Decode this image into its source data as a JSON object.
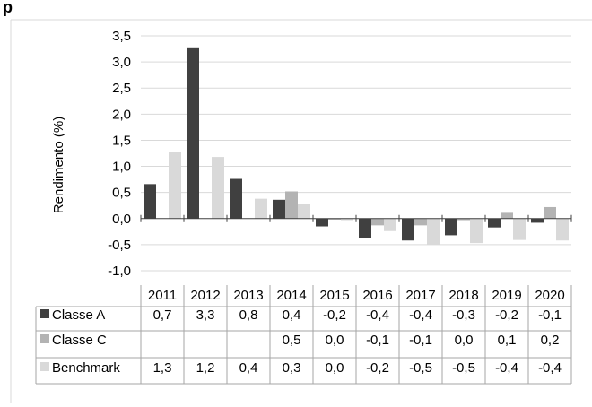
{
  "heading": "p",
  "chart_data": {
    "type": "bar",
    "title": "",
    "xlabel": "",
    "ylabel": "Rendimento (%)",
    "ylim": [
      -1.0,
      3.5
    ],
    "yticks": [
      "3,5",
      "3,0",
      "2,5",
      "2,0",
      "1,5",
      "1,0",
      "0,5",
      "0,0",
      "-0,5",
      "-1,0"
    ],
    "ytick_values": [
      3.5,
      3.0,
      2.5,
      2.0,
      1.5,
      1.0,
      0.5,
      0.0,
      -0.5,
      -1.0
    ],
    "grid": true,
    "legend": "data-table",
    "categories": [
      "2011",
      "2012",
      "2013",
      "2014",
      "2015",
      "2016",
      "2017",
      "2018",
      "2019",
      "2020"
    ],
    "series": [
      {
        "name": "Classe A",
        "color": "#404040",
        "values": [
          0.66,
          3.28,
          0.76,
          0.36,
          -0.15,
          -0.38,
          -0.42,
          -0.32,
          -0.17,
          -0.08
        ],
        "labels": [
          "0,7",
          "3,3",
          "0,8",
          "0,4",
          "-0,2",
          "-0,4",
          "-0,4",
          "-0,3",
          "-0,2",
          "-0,1"
        ]
      },
      {
        "name": "Classe C",
        "color": "#b3b3b3",
        "values": [
          null,
          null,
          null,
          0.52,
          -0.02,
          -0.13,
          -0.13,
          -0.03,
          0.11,
          0.22
        ],
        "labels": [
          "",
          "",
          "",
          "0,5",
          "0,0",
          "-0,1",
          "-0,1",
          "0,0",
          "0,1",
          "0,2"
        ]
      },
      {
        "name": "Benchmark",
        "color": "#d9d9d9",
        "values": [
          1.27,
          1.18,
          0.38,
          0.28,
          -0.03,
          -0.24,
          -0.5,
          -0.47,
          -0.41,
          -0.42
        ],
        "labels": [
          "1,3",
          "1,2",
          "0,4",
          "0,3",
          "0,0",
          "-0,2",
          "-0,5",
          "-0,5",
          "-0,4",
          "-0,4"
        ]
      }
    ]
  }
}
